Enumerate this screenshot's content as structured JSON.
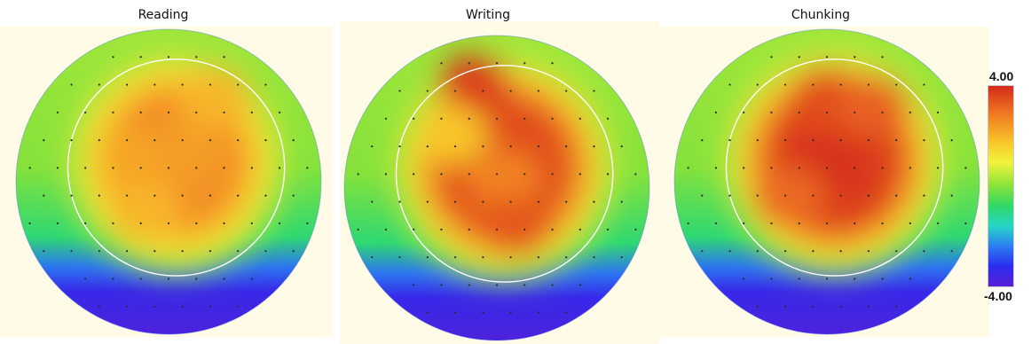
{
  "chart_data": {
    "type": "heatmap",
    "subtype": "scalp-topography",
    "maps": [
      {
        "title": "Reading",
        "center": [
          0.05,
          0.14
        ],
        "peak_value": 2.9,
        "activations": [
          {
            "x": -0.2,
            "y": 0.15,
            "value": 2.6
          },
          {
            "x": 0.12,
            "y": 0.18,
            "value": 2.7
          },
          {
            "x": 0.3,
            "y": 0.55,
            "value": 2.4
          },
          {
            "x": -0.15,
            "y": -0.2,
            "value": 2.4
          }
        ]
      },
      {
        "title": "Writing",
        "center": [
          0.05,
          0.14
        ],
        "peak_value": 3.6,
        "activations": [
          {
            "x": -0.15,
            "y": 0.68,
            "value": 3.8
          },
          {
            "x": 0.05,
            "y": 0.05,
            "value": 3.0
          },
          {
            "x": 0.12,
            "y": -0.25,
            "value": 3.5
          },
          {
            "x": -0.3,
            "y": 0.35,
            "value": 2.2
          }
        ]
      },
      {
        "title": "Chunking",
        "center": [
          0.05,
          0.14
        ],
        "peak_value": 3.8,
        "activations": [
          {
            "x": 0.0,
            "y": 0.1,
            "value": 3.9
          },
          {
            "x": 0.0,
            "y": 0.55,
            "value": 3.6
          },
          {
            "x": 0.3,
            "y": 0.5,
            "value": 3.4
          },
          {
            "x": -0.25,
            "y": -0.1,
            "value": 3.3
          }
        ]
      }
    ],
    "colorbar": {
      "max_label": "4.00",
      "min_label": "-4.00",
      "range": [
        -4.0,
        4.0
      ],
      "colormap": [
        "#5a1fd6",
        "#2b2cf0",
        "#2c7df0",
        "#26d6c8",
        "#2fd869",
        "#88e23a",
        "#f2f33c",
        "#f8c52a",
        "#f17a23",
        "#d42a1a"
      ]
    },
    "grid": false,
    "legend": "right"
  }
}
